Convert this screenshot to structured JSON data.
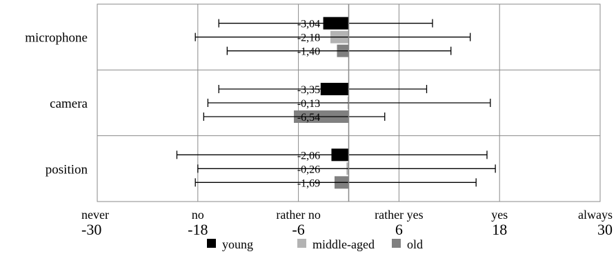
{
  "chart_data": {
    "type": "bar",
    "orientation": "horizontal",
    "categories": [
      "microphone",
      "camera",
      "position"
    ],
    "x_ticks": [
      {
        "value": -30,
        "word": "never"
      },
      {
        "value": -18,
        "word": "no"
      },
      {
        "value": -6,
        "word": "rather no"
      },
      {
        "value": 6,
        "word": "rather yes"
      },
      {
        "value": 18,
        "word": "yes"
      },
      {
        "value": 30,
        "word": "always"
      }
    ],
    "xlim": [
      -30,
      30
    ],
    "grid": true,
    "legend_position": "bottom",
    "series": [
      {
        "name": "young",
        "color": "#000000",
        "values": [
          -3.04,
          -3.35,
          -2.06
        ],
        "labels": [
          "-3,04",
          "-3,35",
          "-2,06"
        ],
        "error_low": [
          -15.5,
          -15.5,
          -20.5
        ],
        "error_high": [
          10,
          9.3,
          16.5
        ]
      },
      {
        "name": "middle-aged",
        "color": "#b3b3b3",
        "values": [
          -2.18,
          -0.13,
          -0.26
        ],
        "labels": [
          "-2,18",
          "-0,13",
          "-0,26"
        ],
        "error_low": [
          -18.3,
          -16.8,
          -18
        ],
        "error_high": [
          14.5,
          16.9,
          17.5
        ]
      },
      {
        "name": "old",
        "color": "#808080",
        "values": [
          -1.4,
          -6.54,
          -1.69
        ],
        "labels": [
          "-1,40",
          "-6,54",
          "-1,69"
        ],
        "error_low": [
          -14.5,
          -17.3,
          -18.3
        ],
        "error_high": [
          12.2,
          4.3,
          15.2
        ]
      }
    ]
  }
}
